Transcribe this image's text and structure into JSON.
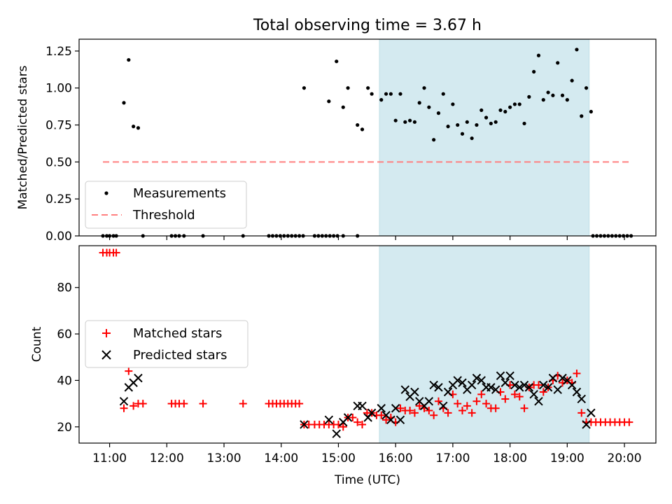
{
  "chart_data": [
    {
      "type": "scatter",
      "title": "Total observing time = 3.67 h",
      "xlabel": "",
      "ylabel": "Matched/Predicted stars",
      "xlim": [
        "10:28",
        "20:33"
      ],
      "ylim": [
        0,
        1.33
      ],
      "yticks": [
        "0.00",
        "0.25",
        "0.50",
        "0.75",
        "1.00",
        "1.25"
      ],
      "legend_position": "lower-left",
      "observing_window": {
        "start": "15:43",
        "end": "19:23",
        "color": "#d4eaf0"
      },
      "series": [
        {
          "name": "Measurements",
          "color": "#000000",
          "points": [
            [
              "10:53",
              0
            ],
            [
              "10:57",
              0
            ],
            [
              "11:00",
              0
            ],
            [
              "11:04",
              0
            ],
            [
              "11:07",
              0
            ],
            [
              "11:15",
              0.9
            ],
            [
              "11:20",
              1.19
            ],
            [
              "11:25",
              0.74
            ],
            [
              "11:30",
              0.73
            ],
            [
              "11:35",
              0
            ],
            [
              "12:05",
              0
            ],
            [
              "12:09",
              0
            ],
            [
              "12:13",
              0
            ],
            [
              "12:18",
              0
            ],
            [
              "12:38",
              0
            ],
            [
              "13:20",
              0
            ],
            [
              "13:47",
              0
            ],
            [
              "13:51",
              0
            ],
            [
              "13:55",
              0
            ],
            [
              "13:59",
              0
            ],
            [
              "14:03",
              0
            ],
            [
              "14:07",
              0
            ],
            [
              "14:11",
              0
            ],
            [
              "14:15",
              0
            ],
            [
              "14:19",
              0
            ],
            [
              "14:23",
              0
            ],
            [
              "14:35",
              0
            ],
            [
              "14:39",
              0
            ],
            [
              "14:43",
              0
            ],
            [
              "14:47",
              0
            ],
            [
              "14:51",
              0
            ],
            [
              "14:55",
              0
            ],
            [
              "14:59",
              0
            ],
            [
              "15:05",
              0
            ],
            [
              "15:20",
              0
            ],
            [
              "14:24",
              1.0
            ],
            [
              "14:50",
              0.91
            ],
            [
              "14:58",
              1.18
            ],
            [
              "15:05",
              0.87
            ],
            [
              "15:10",
              1.0
            ],
            [
              "15:20",
              0.75
            ],
            [
              "15:25",
              0.72
            ],
            [
              "15:31",
              1.0
            ],
            [
              "15:35",
              0.96
            ],
            [
              "15:45",
              0.92
            ],
            [
              "15:50",
              0.96
            ],
            [
              "15:55",
              0.96
            ],
            [
              "16:00",
              0.78
            ],
            [
              "16:05",
              0.96
            ],
            [
              "16:10",
              0.77
            ],
            [
              "16:15",
              0.78
            ],
            [
              "16:20",
              0.77
            ],
            [
              "16:25",
              0.9
            ],
            [
              "16:30",
              1.0
            ],
            [
              "16:35",
              0.87
            ],
            [
              "16:40",
              0.65
            ],
            [
              "16:45",
              0.83
            ],
            [
              "16:50",
              0.96
            ],
            [
              "16:55",
              0.74
            ],
            [
              "17:00",
              0.89
            ],
            [
              "17:05",
              0.75
            ],
            [
              "17:10",
              0.69
            ],
            [
              "17:15",
              0.77
            ],
            [
              "17:20",
              0.66
            ],
            [
              "17:25",
              0.75
            ],
            [
              "17:30",
              0.85
            ],
            [
              "17:35",
              0.8
            ],
            [
              "17:40",
              0.76
            ],
            [
              "17:45",
              0.77
            ],
            [
              "17:50",
              0.85
            ],
            [
              "17:55",
              0.84
            ],
            [
              "18:00",
              0.87
            ],
            [
              "18:05",
              0.89
            ],
            [
              "18:10",
              0.89
            ],
            [
              "18:15",
              0.76
            ],
            [
              "18:20",
              0.94
            ],
            [
              "18:25",
              1.11
            ],
            [
              "18:30",
              1.22
            ],
            [
              "18:35",
              0.92
            ],
            [
              "18:40",
              0.97
            ],
            [
              "18:45",
              0.95
            ],
            [
              "18:50",
              1.17
            ],
            [
              "18:55",
              0.95
            ],
            [
              "19:00",
              0.92
            ],
            [
              "19:05",
              1.05
            ],
            [
              "19:10",
              1.26
            ],
            [
              "19:15",
              0.81
            ],
            [
              "19:20",
              1.0
            ],
            [
              "19:25",
              0.84
            ],
            [
              "19:27",
              0
            ],
            [
              "19:31",
              0
            ],
            [
              "19:35",
              0
            ],
            [
              "19:39",
              0
            ],
            [
              "19:43",
              0
            ],
            [
              "19:47",
              0
            ],
            [
              "19:51",
              0
            ],
            [
              "19:55",
              0
            ],
            [
              "19:59",
              0
            ],
            [
              "20:03",
              0
            ],
            [
              "20:07",
              0
            ]
          ]
        },
        {
          "name": "Threshold",
          "color": "#ff7f7f",
          "style": "dashed",
          "points": [
            [
              "10:53",
              0.5
            ],
            [
              "20:07",
              0.5
            ]
          ]
        }
      ]
    },
    {
      "type": "scatter",
      "title": "",
      "xlabel": "Time (UTC)",
      "ylabel": "Count",
      "xlim": [
        "10:28",
        "20:33"
      ],
      "ylim": [
        13,
        98
      ],
      "yticks": [
        "20",
        "40",
        "60",
        "80"
      ],
      "xticks": [
        "11:00",
        "12:00",
        "13:00",
        "14:00",
        "15:00",
        "16:00",
        "17:00",
        "18:00",
        "19:00",
        "20:00"
      ],
      "legend_position": "center-left",
      "observing_window": {
        "start": "15:43",
        "end": "19:23",
        "color": "#d4eaf0"
      },
      "series": [
        {
          "name": "Matched stars",
          "marker": "+",
          "color": "#ff0000",
          "points": [
            [
              "10:53",
              95
            ],
            [
              "10:57",
              95
            ],
            [
              "11:00",
              95
            ],
            [
              "11:04",
              95
            ],
            [
              "11:07",
              95
            ],
            [
              "11:15",
              28
            ],
            [
              "11:20",
              44
            ],
            [
              "11:25",
              29
            ],
            [
              "11:30",
              30
            ],
            [
              "11:35",
              30
            ],
            [
              "12:05",
              30
            ],
            [
              "12:09",
              30
            ],
            [
              "12:13",
              30
            ],
            [
              "12:18",
              30
            ],
            [
              "12:38",
              30
            ],
            [
              "13:20",
              30
            ],
            [
              "13:47",
              30
            ],
            [
              "13:51",
              30
            ],
            [
              "13:55",
              30
            ],
            [
              "13:59",
              30
            ],
            [
              "14:03",
              30
            ],
            [
              "14:07",
              30
            ],
            [
              "14:11",
              30
            ],
            [
              "14:15",
              30
            ],
            [
              "14:19",
              30
            ],
            [
              "14:24",
              21
            ],
            [
              "14:29",
              21
            ],
            [
              "14:35",
              21
            ],
            [
              "14:40",
              21
            ],
            [
              "14:45",
              21
            ],
            [
              "14:50",
              21
            ],
            [
              "14:55",
              21
            ],
            [
              "15:00",
              21
            ],
            [
              "15:05",
              20
            ],
            [
              "15:10",
              24
            ],
            [
              "15:15",
              24
            ],
            [
              "15:20",
              22
            ],
            [
              "15:25",
              21
            ],
            [
              "15:30",
              26
            ],
            [
              "15:35",
              26
            ],
            [
              "15:40",
              25
            ],
            [
              "15:45",
              25
            ],
            [
              "15:50",
              23
            ],
            [
              "15:55",
              24
            ],
            [
              "16:00",
              22
            ],
            [
              "16:05",
              28
            ],
            [
              "16:10",
              27
            ],
            [
              "16:15",
              27
            ],
            [
              "16:20",
              26
            ],
            [
              "16:25",
              29
            ],
            [
              "16:30",
              28
            ],
            [
              "16:35",
              27
            ],
            [
              "16:40",
              25
            ],
            [
              "16:45",
              31
            ],
            [
              "16:50",
              28
            ],
            [
              "16:55",
              26
            ],
            [
              "17:00",
              34
            ],
            [
              "17:05",
              30
            ],
            [
              "17:10",
              27
            ],
            [
              "17:15",
              29
            ],
            [
              "17:20",
              26
            ],
            [
              "17:25",
              31
            ],
            [
              "17:30",
              34
            ],
            [
              "17:35",
              30
            ],
            [
              "17:40",
              28
            ],
            [
              "17:45",
              28
            ],
            [
              "17:50",
              35
            ],
            [
              "17:55",
              32
            ],
            [
              "18:00",
              38
            ],
            [
              "18:05",
              34
            ],
            [
              "18:10",
              33
            ],
            [
              "18:15",
              28
            ],
            [
              "18:20",
              37
            ],
            [
              "18:25",
              38
            ],
            [
              "18:30",
              38
            ],
            [
              "18:35",
              35
            ],
            [
              "18:40",
              37
            ],
            [
              "18:45",
              40
            ],
            [
              "18:50",
              42
            ],
            [
              "18:55",
              39
            ],
            [
              "19:00",
              40
            ],
            [
              "19:05",
              39
            ],
            [
              "19:10",
              43
            ],
            [
              "19:15",
              26
            ],
            [
              "19:20",
              22
            ],
            [
              "19:25",
              22
            ],
            [
              "19:30",
              22
            ],
            [
              "19:35",
              22
            ],
            [
              "19:40",
              22
            ],
            [
              "19:45",
              22
            ],
            [
              "19:50",
              22
            ],
            [
              "19:55",
              22
            ],
            [
              "20:00",
              22
            ],
            [
              "20:05",
              22
            ]
          ]
        },
        {
          "name": "Predicted stars",
          "marker": "x",
          "color": "#000000",
          "points": [
            [
              "11:15",
              31
            ],
            [
              "11:20",
              37
            ],
            [
              "11:25",
              39
            ],
            [
              "11:30",
              41
            ],
            [
              "14:24",
              21
            ],
            [
              "14:50",
              23
            ],
            [
              "14:58",
              17
            ],
            [
              "15:05",
              22
            ],
            [
              "15:10",
              24
            ],
            [
              "15:20",
              29
            ],
            [
              "15:25",
              29
            ],
            [
              "15:31",
              24
            ],
            [
              "15:35",
              26
            ],
            [
              "15:45",
              28
            ],
            [
              "15:50",
              25
            ],
            [
              "15:55",
              23
            ],
            [
              "16:00",
              28
            ],
            [
              "16:05",
              23
            ],
            [
              "16:10",
              36
            ],
            [
              "16:15",
              33
            ],
            [
              "16:20",
              35
            ],
            [
              "16:25",
              31
            ],
            [
              "16:30",
              29
            ],
            [
              "16:35",
              31
            ],
            [
              "16:40",
              38
            ],
            [
              "16:45",
              37
            ],
            [
              "16:50",
              29
            ],
            [
              "16:55",
              35
            ],
            [
              "17:00",
              38
            ],
            [
              "17:05",
              40
            ],
            [
              "17:10",
              39
            ],
            [
              "17:15",
              36
            ],
            [
              "17:20",
              38
            ],
            [
              "17:25",
              41
            ],
            [
              "17:30",
              40
            ],
            [
              "17:35",
              37
            ],
            [
              "17:40",
              37
            ],
            [
              "17:45",
              36
            ],
            [
              "17:50",
              42
            ],
            [
              "17:55",
              39
            ],
            [
              "18:00",
              42
            ],
            [
              "18:05",
              38
            ],
            [
              "18:10",
              37
            ],
            [
              "18:15",
              38
            ],
            [
              "18:20",
              37
            ],
            [
              "18:25",
              34
            ],
            [
              "18:30",
              31
            ],
            [
              "18:35",
              38
            ],
            [
              "18:40",
              37
            ],
            [
              "18:45",
              41
            ],
            [
              "18:50",
              36
            ],
            [
              "18:55",
              41
            ],
            [
              "19:00",
              40
            ],
            [
              "19:05",
              38
            ],
            [
              "19:10",
              35
            ],
            [
              "19:15",
              32
            ],
            [
              "19:20",
              21
            ],
            [
              "19:25",
              26
            ]
          ]
        }
      ]
    }
  ]
}
